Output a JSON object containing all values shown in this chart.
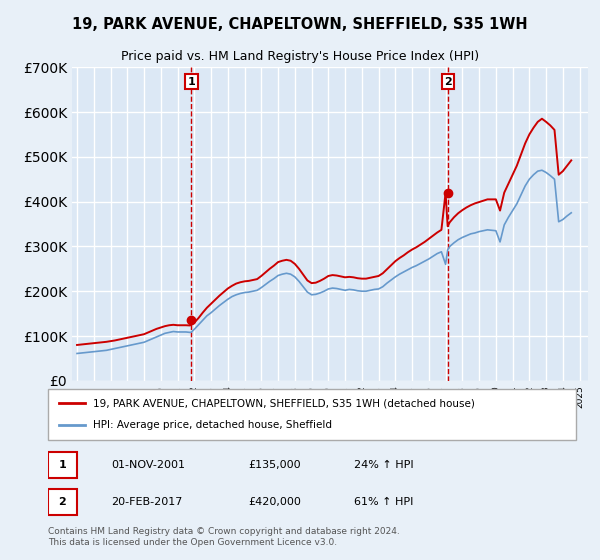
{
  "title": "19, PARK AVENUE, CHAPELTOWN, SHEFFIELD, S35 1WH",
  "subtitle": "Price paid vs. HM Land Registry's House Price Index (HPI)",
  "legend_line1": "19, PARK AVENUE, CHAPELTOWN, SHEFFIELD, S35 1WH (detached house)",
  "legend_line2": "HPI: Average price, detached house, Sheffield",
  "footer": "Contains HM Land Registry data © Crown copyright and database right 2024.\nThis data is licensed under the Open Government Licence v3.0.",
  "annotation1_label": "1",
  "annotation1_date": "01-NOV-2001",
  "annotation1_price": "£135,000",
  "annotation1_hpi": "24% ↑ HPI",
  "annotation2_label": "2",
  "annotation2_date": "20-FEB-2017",
  "annotation2_price": "£420,000",
  "annotation2_hpi": "61% ↑ HPI",
  "sale1_x": 2001.83,
  "sale1_y": 135000,
  "sale2_x": 2017.12,
  "sale2_y": 420000,
  "vline1_x": 2001.83,
  "vline2_x": 2017.12,
  "ylim": [
    0,
    700000
  ],
  "xlim_start": 1995,
  "xlim_end": 2025.5,
  "red_color": "#cc0000",
  "blue_color": "#6699cc",
  "background_color": "#e8f0f8",
  "plot_bg_color": "#dce8f5",
  "grid_color": "#ffffff",
  "hpi_data": {
    "years": [
      1995.0,
      1995.25,
      1995.5,
      1995.75,
      1996.0,
      1996.25,
      1996.5,
      1996.75,
      1997.0,
      1997.25,
      1997.5,
      1997.75,
      1998.0,
      1998.25,
      1998.5,
      1998.75,
      1999.0,
      1999.25,
      1999.5,
      1999.75,
      2000.0,
      2000.25,
      2000.5,
      2000.75,
      2001.0,
      2001.25,
      2001.5,
      2001.75,
      2001.83,
      2002.0,
      2002.25,
      2002.5,
      2002.75,
      2003.0,
      2003.25,
      2003.5,
      2003.75,
      2004.0,
      2004.25,
      2004.5,
      2004.75,
      2005.0,
      2005.25,
      2005.5,
      2005.75,
      2006.0,
      2006.25,
      2006.5,
      2006.75,
      2007.0,
      2007.25,
      2007.5,
      2007.75,
      2008.0,
      2008.25,
      2008.5,
      2008.75,
      2009.0,
      2009.25,
      2009.5,
      2009.75,
      2010.0,
      2010.25,
      2010.5,
      2010.75,
      2011.0,
      2011.25,
      2011.5,
      2011.75,
      2012.0,
      2012.25,
      2012.5,
      2012.75,
      2013.0,
      2013.25,
      2013.5,
      2013.75,
      2014.0,
      2014.25,
      2014.5,
      2014.75,
      2015.0,
      2015.25,
      2015.5,
      2015.75,
      2016.0,
      2016.25,
      2016.5,
      2016.75,
      2017.0,
      2017.12,
      2017.25,
      2017.5,
      2017.75,
      2018.0,
      2018.25,
      2018.5,
      2018.75,
      2019.0,
      2019.25,
      2019.5,
      2019.75,
      2020.0,
      2020.25,
      2020.5,
      2020.75,
      2021.0,
      2021.25,
      2021.5,
      2021.75,
      2022.0,
      2022.25,
      2022.5,
      2022.75,
      2023.0,
      2023.25,
      2023.5,
      2023.75,
      2024.0,
      2024.25,
      2024.5
    ],
    "values": [
      61000,
      62000,
      63000,
      64000,
      65000,
      66000,
      67000,
      68000,
      70000,
      72000,
      74000,
      76000,
      78000,
      80000,
      82000,
      84000,
      86000,
      90000,
      94000,
      98000,
      102000,
      106000,
      108000,
      110000,
      109000,
      109000,
      109000,
      108000,
      108800,
      115000,
      125000,
      135000,
      145000,
      152000,
      160000,
      168000,
      175000,
      182000,
      188000,
      192000,
      195000,
      197000,
      198000,
      200000,
      202000,
      208000,
      215000,
      222000,
      228000,
      235000,
      238000,
      240000,
      238000,
      232000,
      222000,
      210000,
      198000,
      192000,
      193000,
      196000,
      200000,
      205000,
      207000,
      206000,
      204000,
      202000,
      204000,
      203000,
      201000,
      200000,
      200000,
      202000,
      204000,
      205000,
      210000,
      218000,
      225000,
      232000,
      238000,
      243000,
      248000,
      253000,
      257000,
      262000,
      267000,
      272000,
      278000,
      284000,
      288000,
      260000,
      292000,
      300000,
      308000,
      315000,
      320000,
      324000,
      328000,
      330000,
      333000,
      335000,
      337000,
      336000,
      335000,
      310000,
      348000,
      365000,
      380000,
      395000,
      415000,
      435000,
      450000,
      460000,
      468000,
      470000,
      465000,
      458000,
      450000,
      355000,
      360000,
      368000,
      375000
    ],
    "red_values": [
      80000,
      81000,
      82000,
      83000,
      84000,
      85000,
      86000,
      87000,
      88500,
      90000,
      92000,
      94000,
      96000,
      98000,
      100000,
      102000,
      104000,
      108000,
      112000,
      116000,
      119000,
      122000,
      124000,
      125000,
      124000,
      124000,
      124000,
      123500,
      135000,
      130000,
      140000,
      152000,
      163000,
      172000,
      181000,
      190000,
      198000,
      206000,
      212000,
      217000,
      220000,
      222000,
      223000,
      225000,
      227000,
      234000,
      242000,
      250000,
      257000,
      265000,
      268000,
      270000,
      268000,
      261000,
      250000,
      237000,
      224000,
      218000,
      219000,
      223000,
      228000,
      234000,
      236000,
      235000,
      233000,
      231000,
      232000,
      231000,
      229000,
      228000,
      228000,
      230000,
      232000,
      234000,
      240000,
      249000,
      258000,
      267000,
      274000,
      280000,
      287000,
      293000,
      298000,
      304000,
      310000,
      317000,
      324000,
      331000,
      337000,
      420000,
      345000,
      354000,
      365000,
      374000,
      381000,
      387000,
      392000,
      396000,
      399000,
      402000,
      405000,
      405000,
      405000,
      380000,
      420000,
      440000,
      460000,
      480000,
      505000,
      530000,
      550000,
      565000,
      578000,
      585000,
      578000,
      570000,
      560000,
      460000,
      468000,
      480000,
      492000
    ]
  }
}
